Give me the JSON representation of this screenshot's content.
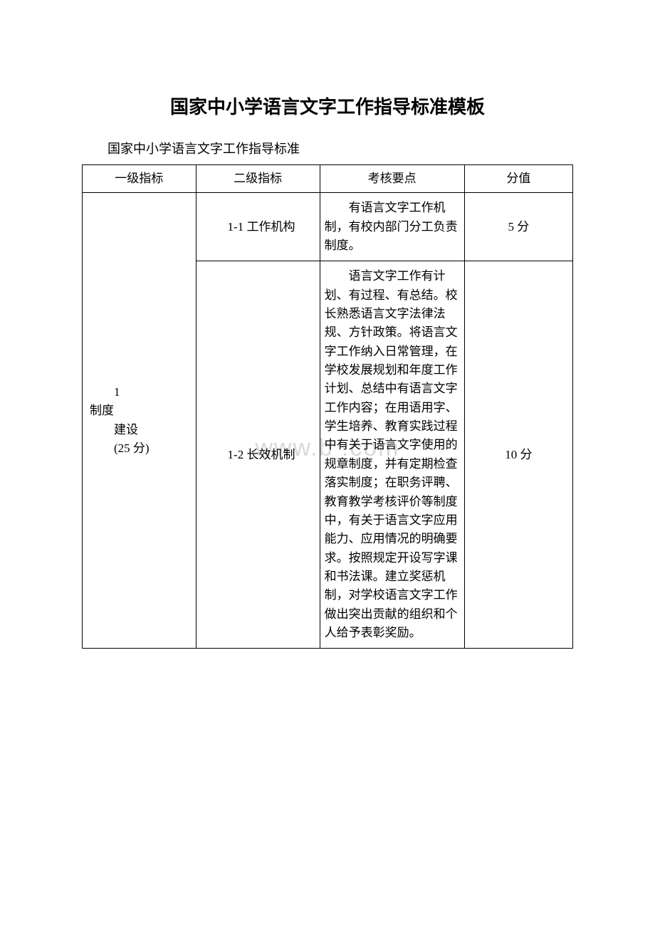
{
  "page_title": "国家中小学语言文字工作指导标准模板",
  "page_subtitle": "国家中小学语言文字工作指导标准",
  "watermark_text": "www.b    .com",
  "table": {
    "widths_pct": [
      22,
      24,
      28,
      21
    ],
    "border_color": "#000000",
    "background_color": "#ffffff",
    "text_color": "#000000",
    "watermark_color": "#d9d9d9",
    "font_size_body": 17,
    "font_size_title": 26,
    "font_size_subtitle": 18,
    "headers": [
      "一级指标",
      "二级指标",
      "考核要点",
      "分值"
    ],
    "rows": [
      {
        "level1_lines": [
          "1",
          "制度",
          "建设",
          "(25 分)"
        ],
        "level1_rowspan": 2,
        "level2": "1-1 工作机构",
        "assess": "有语言文字工作机制，有校内部门分工负责制度。",
        "score": "5 分"
      },
      {
        "level2": "1-2 长效机制",
        "assess": "语言文字工作有计划、有过程、有总结。校长熟悉语言文字法律法规、方针政策。将语言文字工作纳入日常管理，在学校发展规划和年度工作计划、总结中有语言文字工作内容；在用语用字、学生培养、教育实践过程中有关于语言文字使用的规章制度，并有定期检查落实制度；在职务评聘、教育教学考核评价等制度中，有关于语言文字应用能力、应用情况的明确要求。按照规定开设写字课和书法课。建立奖惩机制，对学校语言文字工作做出突出贡献的组织和个人给予表彰奖励。",
        "score": "10 分"
      }
    ]
  }
}
